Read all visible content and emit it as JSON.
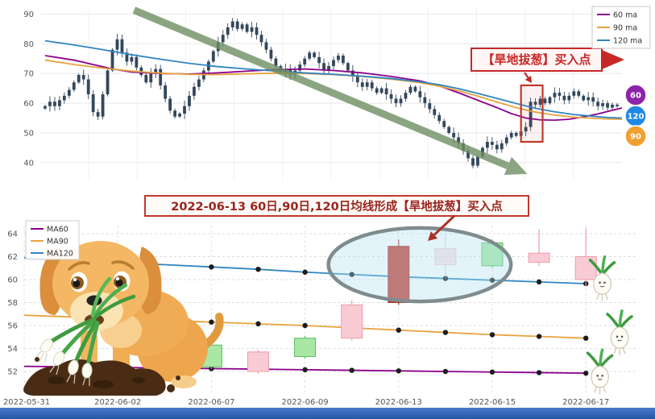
{
  "mid_annotation": {
    "text": "2022-06-13 60日,90日,120日均线形成【旱地拔葱】买入点",
    "border_color": "#C0392B",
    "text_color": "#99231D",
    "arrow_color": "#A93226"
  },
  "page": {
    "bottom_bar_color": "#2458A6"
  },
  "chart_data": [
    {
      "id": "daily-candlestick",
      "type": "candlestick",
      "ylim": [
        34,
        92
      ],
      "yticks": [
        90,
        80,
        70,
        60,
        50,
        40
      ],
      "grid": true,
      "candle_color": "#33475C",
      "legend_position": "top-right",
      "legend": [
        {
          "label": "60 ma",
          "color": "#8B008B"
        },
        {
          "label": "90 ma",
          "color": "#E8A33D"
        },
        {
          "label": "120 ma",
          "color": "#2E86C1"
        }
      ],
      "closes": [
        59,
        60.5,
        59,
        61,
        62.5,
        64.5,
        67,
        69.5,
        68,
        63,
        57,
        55.5,
        63,
        71,
        78,
        81.5,
        77,
        74,
        75.5,
        72,
        69.5,
        67,
        70,
        71.5,
        66,
        61.5,
        57.5,
        55.5,
        56.5,
        59,
        62.5,
        65.5,
        68,
        71,
        74,
        77.5,
        80.5,
        83,
        85.5,
        87.5,
        85,
        86.5,
        84,
        85.5,
        83,
        80.5,
        78,
        75,
        72.5,
        70.5,
        71.5,
        69.5,
        71,
        73,
        75,
        77,
        75.5,
        73.5,
        71,
        72.5,
        74.5,
        76,
        73.5,
        71,
        69,
        67,
        65.5,
        67,
        65,
        63.5,
        65,
        63,
        61.5,
        60,
        61.5,
        63.5,
        65.5,
        64,
        62,
        60,
        58,
        56,
        54,
        52,
        50,
        48.5,
        46.5,
        44,
        41.5,
        39,
        42,
        45,
        47,
        46,
        44.5,
        46.5,
        48.5,
        50,
        49,
        50.5,
        52,
        60.5,
        59.5,
        61.5,
        60,
        62,
        63.5,
        62.5,
        61,
        62.5,
        64,
        62.5,
        61,
        62,
        60.5,
        59,
        60,
        58.5,
        59.5,
        59
      ],
      "ma_lines": [
        {
          "name": "60 ma",
          "color": "#8B008B",
          "points": [
            [
              0,
              76
            ],
            [
              6,
              74.5
            ],
            [
              10,
              73
            ],
            [
              14,
              71.5
            ],
            [
              18,
              70.5
            ],
            [
              24,
              70
            ],
            [
              30,
              69.8
            ],
            [
              36,
              70.2
            ],
            [
              42,
              70.8
            ],
            [
              48,
              71.3
            ],
            [
              54,
              71.5
            ],
            [
              60,
              71
            ],
            [
              66,
              70.2
            ],
            [
              72,
              69
            ],
            [
              78,
              67.5
            ],
            [
              82,
              65.8
            ],
            [
              86,
              63.5
            ],
            [
              90,
              61
            ],
            [
              94,
              58.5
            ],
            [
              97,
              56.5
            ],
            [
              100,
              55
            ],
            [
              103,
              54.4
            ],
            [
              106,
              54.3
            ],
            [
              109,
              54.6
            ],
            [
              112,
              55.4
            ],
            [
              115,
              56.4
            ],
            [
              118,
              57.6
            ],
            [
              120,
              58.4
            ]
          ]
        },
        {
          "name": "90 ma",
          "color": "#E8A33D",
          "points": [
            [
              0,
              74.5
            ],
            [
              6,
              73
            ],
            [
              12,
              71.8
            ],
            [
              18,
              70.8
            ],
            [
              24,
              70.1
            ],
            [
              30,
              69.7
            ],
            [
              36,
              69.6
            ],
            [
              42,
              69.9
            ],
            [
              48,
              70.1
            ],
            [
              54,
              70
            ],
            [
              60,
              69.6
            ],
            [
              66,
              69
            ],
            [
              72,
              68.1
            ],
            [
              78,
              66.9
            ],
            [
              82,
              65.7
            ],
            [
              86,
              64.2
            ],
            [
              90,
              62.4
            ],
            [
              94,
              60.4
            ],
            [
              98,
              58.5
            ],
            [
              102,
              57
            ],
            [
              106,
              56
            ],
            [
              110,
              55.3
            ],
            [
              114,
              54.9
            ],
            [
              117,
              54.7
            ],
            [
              120,
              54.6
            ]
          ]
        },
        {
          "name": "120 ma",
          "color": "#2E86C1",
          "points": [
            [
              0,
              81
            ],
            [
              6,
              79.6
            ],
            [
              12,
              78
            ],
            [
              18,
              76.3
            ],
            [
              24,
              74.8
            ],
            [
              30,
              73.4
            ],
            [
              36,
              72.3
            ],
            [
              42,
              71.5
            ],
            [
              48,
              70.8
            ],
            [
              54,
              70.2
            ],
            [
              60,
              69.7
            ],
            [
              66,
              69.1
            ],
            [
              72,
              68.3
            ],
            [
              78,
              67.2
            ],
            [
              82,
              66.2
            ],
            [
              86,
              64.9
            ],
            [
              90,
              63.3
            ],
            [
              94,
              61.6
            ],
            [
              98,
              59.9
            ],
            [
              102,
              58.3
            ],
            [
              106,
              57.1
            ],
            [
              110,
              56.2
            ],
            [
              114,
              55.6
            ],
            [
              117,
              55.2
            ],
            [
              120,
              55
            ]
          ]
        }
      ],
      "annotations": {
        "buy_callout": {
          "text": "【旱地拔葱】买入点",
          "color": "#C62828"
        },
        "trend_arrow": {
          "from_idx": 18.5,
          "from_val": 91.3,
          "to_idx": 100.3,
          "to_val": 36.2,
          "color": "#6F8F63"
        },
        "highlight_rect": {
          "from_idx": 99.0,
          "to_idx": 103.5,
          "val_top": 66,
          "val_bottom": 47,
          "color": "#C0392B"
        }
      },
      "badges": [
        {
          "label": "60",
          "color": "#8E24AA"
        },
        {
          "label": "120",
          "color": "#1E88E5"
        },
        {
          "label": "90",
          "color": "#F0A030"
        }
      ]
    },
    {
      "id": "pattern-zoom",
      "type": "candlestick",
      "yticks": [
        64,
        62,
        60,
        58,
        56,
        54,
        52
      ],
      "grid": "dashed",
      "legend_position": "top-left",
      "illustration": "cartoon puppy pulling scallions from dirt mound",
      "dates": [
        "2022-05-31",
        "2022-06-01",
        "2022-06-02",
        "2022-06-06",
        "2022-06-07",
        "2022-06-08",
        "2022-06-09",
        "2022-06-10",
        "2022-06-13",
        "2022-06-14",
        "2022-06-15",
        "2022-06-16",
        "2022-06-17"
      ],
      "xtick_labels": [
        "2022-05-31",
        "2022-06-02",
        "2022-06-07",
        "2022-06-09",
        "2022-06-13",
        "2022-06-15",
        "2022-06-17"
      ],
      "legend": [
        {
          "label": "MA60",
          "color": "#8B008B"
        },
        {
          "label": "MA90",
          "color": "#E8A33D"
        },
        {
          "label": "MA120",
          "color": "#2E86C1"
        }
      ],
      "series": [
        {
          "name": "MA60",
          "color": "#8B008B",
          "values": [
            52.45,
            52.4,
            52.35,
            52.3,
            52.25,
            52.2,
            52.15,
            52.1,
            52.05,
            52.0,
            51.95,
            51.9,
            51.85
          ]
        },
        {
          "name": "MA90",
          "color": "#E8A33D",
          "values": [
            56.9,
            56.75,
            56.6,
            56.45,
            56.3,
            56.15,
            56.0,
            55.8,
            55.6,
            55.4,
            55.2,
            55.05,
            54.9
          ]
        },
        {
          "name": "MA120",
          "color": "#2E86C1",
          "values": [
            61.9,
            61.7,
            61.5,
            61.3,
            61.1,
            60.9,
            60.65,
            60.45,
            60.25,
            60.1,
            59.95,
            59.8,
            59.65
          ]
        }
      ],
      "marker_color": "#1C1C1C",
      "candles": [
        {
          "date": "2022-06-07",
          "open": 54.3,
          "close": 52.4,
          "high": 54.6,
          "low": 52.2,
          "kind": "down"
        },
        {
          "date": "2022-06-08",
          "open": 52.0,
          "close": 53.7,
          "high": 53.9,
          "low": 51.8,
          "kind": "up"
        },
        {
          "date": "2022-06-09",
          "open": 54.9,
          "close": 53.3,
          "high": 55.1,
          "low": 53.1,
          "kind": "down"
        },
        {
          "date": "2022-06-10",
          "open": 54.9,
          "close": 57.8,
          "high": 58.2,
          "low": 54.7,
          "kind": "up"
        },
        {
          "date": "2022-06-13",
          "open": 58.0,
          "close": 62.9,
          "high": 63.5,
          "low": 57.8,
          "kind": "strong_up"
        },
        {
          "date": "2022-06-14",
          "open": 61.3,
          "close": 62.7,
          "high": 64.0,
          "low": 60.2,
          "kind": "up_faded"
        },
        {
          "date": "2022-06-15",
          "open": 63.2,
          "close": 61.2,
          "high": 63.5,
          "low": 61.0,
          "kind": "down"
        },
        {
          "date": "2022-06-16",
          "open": 61.5,
          "close": 62.3,
          "high": 64.4,
          "low": 61.2,
          "kind": "up"
        },
        {
          "date": "2022-06-17",
          "open": 60.0,
          "close": 62.0,
          "high": 64.5,
          "low": 59.4,
          "kind": "up"
        }
      ],
      "candle_styles": {
        "down": {
          "fill": "#A9E7A4",
          "stroke": "#5DBB63",
          "opacity": 1
        },
        "up": {
          "fill": "#F9CBD4",
          "stroke": "#EE9CA8",
          "opacity": 1
        },
        "strong_up": {
          "fill": "#C43A2F",
          "stroke": "#A93226",
          "opacity": 1
        },
        "up_faded": {
          "fill": "#F9CBD4",
          "stroke": "#EE9CA8",
          "opacity": 0.55
        }
      },
      "ellipse": {
        "center_day": 8.45,
        "center_val": 61.3,
        "rx_days": 1.95,
        "ry_vals": 3.2,
        "stroke": "#7F8C8D",
        "fill": "rgba(180,225,243,0.38)"
      },
      "radish_markers": [
        {
          "day": 12.35,
          "val": 59.8
        },
        {
          "day": 12.72,
          "val": 55.1
        },
        {
          "day": 12.3,
          "val": 51.7
        }
      ]
    }
  ]
}
